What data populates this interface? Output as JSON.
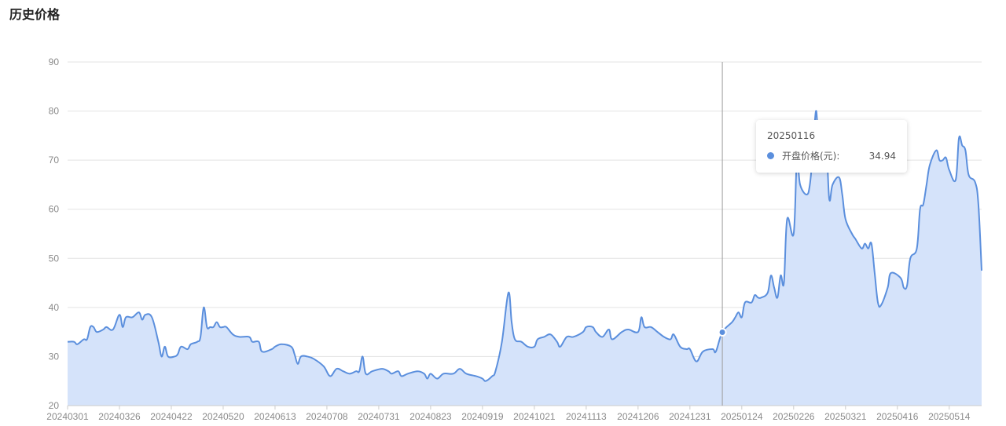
{
  "page": {
    "title": "历史价格"
  },
  "tooltip": {
    "date": "20250116",
    "series_label": "开盘价格(元):",
    "value": "34.94"
  },
  "colors": {
    "line": "#5b8fdd",
    "fill": "#d5e3fa",
    "grid": "#e3e3e3",
    "axis": "#cccccc",
    "crosshair": "#9a9a9a"
  },
  "chart_data": {
    "type": "area",
    "title": "",
    "xlabel": "",
    "ylabel": "",
    "ylim": [
      20,
      90
    ],
    "yticks": [
      20,
      30,
      40,
      50,
      60,
      70,
      80,
      90
    ],
    "grid": true,
    "x_ticks": [
      {
        "index": 0,
        "label": "20240301"
      },
      {
        "index": 16,
        "label": "20240326"
      },
      {
        "index": 32,
        "label": "20240422"
      },
      {
        "index": 48,
        "label": "20240520"
      },
      {
        "index": 64,
        "label": "20240613"
      },
      {
        "index": 80,
        "label": "20240708"
      },
      {
        "index": 96,
        "label": "20240731"
      },
      {
        "index": 112,
        "label": "20240823"
      },
      {
        "index": 128,
        "label": "20240919"
      },
      {
        "index": 144,
        "label": "20241021"
      },
      {
        "index": 160,
        "label": "20241113"
      },
      {
        "index": 176,
        "label": "20241206"
      },
      {
        "index": 192,
        "label": "20241231"
      },
      {
        "index": 208,
        "label": "20250124"
      },
      {
        "index": 224,
        "label": "20250226"
      },
      {
        "index": 240,
        "label": "20250321"
      },
      {
        "index": 256,
        "label": "20250416"
      },
      {
        "index": 272,
        "label": "20250514"
      }
    ],
    "x_max_index": 282,
    "highlight": {
      "index": 202,
      "date": "20250116",
      "value": 34.94
    },
    "series": [
      {
        "points": [
          [
            0,
            33
          ],
          [
            2,
            33
          ],
          [
            3,
            32.5
          ],
          [
            5,
            33.5
          ],
          [
            6,
            33.5
          ],
          [
            7,
            36
          ],
          [
            8,
            36
          ],
          [
            9,
            35
          ],
          [
            11,
            35.5
          ],
          [
            12,
            36
          ],
          [
            14,
            35.5
          ],
          [
            16,
            38.5
          ],
          [
            17,
            36
          ],
          [
            18,
            38
          ],
          [
            20,
            38
          ],
          [
            22,
            39
          ],
          [
            23,
            37.5
          ],
          [
            24,
            38.5
          ],
          [
            26,
            38
          ],
          [
            28,
            33
          ],
          [
            29,
            30
          ],
          [
            30,
            32
          ],
          [
            31,
            30
          ],
          [
            33,
            30
          ],
          [
            34,
            30.5
          ],
          [
            35,
            32
          ],
          [
            37,
            31.5
          ],
          [
            38,
            32.5
          ],
          [
            40,
            33
          ],
          [
            41,
            34
          ],
          [
            42,
            40
          ],
          [
            43,
            36
          ],
          [
            44,
            36
          ],
          [
            45,
            36
          ],
          [
            46,
            37
          ],
          [
            47,
            36
          ],
          [
            48,
            36
          ],
          [
            49,
            36
          ],
          [
            51,
            34.5
          ],
          [
            53,
            34
          ],
          [
            56,
            34
          ],
          [
            57,
            33
          ],
          [
            59,
            33
          ],
          [
            60,
            31
          ],
          [
            63,
            31.5
          ],
          [
            64,
            32
          ],
          [
            66,
            32.5
          ],
          [
            69,
            32
          ],
          [
            70,
            30.5
          ],
          [
            71,
            28.5
          ],
          [
            72,
            30
          ],
          [
            74,
            30
          ],
          [
            76,
            29.5
          ],
          [
            79,
            28
          ],
          [
            81,
            26
          ],
          [
            83,
            27.5
          ],
          [
            85,
            27
          ],
          [
            87,
            26.5
          ],
          [
            89,
            27
          ],
          [
            90,
            27
          ],
          [
            91,
            30
          ],
          [
            92,
            26.5
          ],
          [
            94,
            27
          ],
          [
            97,
            27.5
          ],
          [
            99,
            27
          ],
          [
            100,
            26.5
          ],
          [
            102,
            27
          ],
          [
            103,
            26
          ],
          [
            105,
            26.5
          ],
          [
            108,
            27
          ],
          [
            110,
            26.5
          ],
          [
            111,
            25.5
          ],
          [
            112,
            26.5
          ],
          [
            114,
            25.5
          ],
          [
            116,
            26.5
          ],
          [
            119,
            26.5
          ],
          [
            121,
            27.5
          ],
          [
            123,
            26.5
          ],
          [
            126,
            26
          ],
          [
            128,
            25.5
          ],
          [
            129,
            25
          ],
          [
            131,
            26
          ],
          [
            132,
            27
          ],
          [
            134,
            33
          ],
          [
            136,
            43
          ],
          [
            137,
            37
          ],
          [
            138,
            33.5
          ],
          [
            140,
            33
          ],
          [
            142,
            32
          ],
          [
            144,
            32
          ],
          [
            145,
            33.5
          ],
          [
            147,
            34
          ],
          [
            149,
            34.5
          ],
          [
            151,
            33
          ],
          [
            152,
            32
          ],
          [
            154,
            34
          ],
          [
            156,
            34
          ],
          [
            159,
            35
          ],
          [
            160,
            36
          ],
          [
            162,
            36
          ],
          [
            163,
            35
          ],
          [
            165,
            34
          ],
          [
            167,
            35.5
          ],
          [
            168,
            33.5
          ],
          [
            171,
            35
          ],
          [
            173,
            35.5
          ],
          [
            176,
            35
          ],
          [
            177,
            38
          ],
          [
            178,
            36
          ],
          [
            180,
            36
          ],
          [
            182,
            35
          ],
          [
            184,
            34
          ],
          [
            186,
            33.5
          ],
          [
            187,
            34.5
          ],
          [
            189,
            32
          ],
          [
            191,
            31.5
          ],
          [
            192,
            31.5
          ],
          [
            194,
            29
          ],
          [
            196,
            31
          ],
          [
            199,
            31.5
          ],
          [
            200,
            31
          ],
          [
            202,
            34.94
          ],
          [
            205,
            37
          ],
          [
            206,
            38
          ],
          [
            207,
            39
          ],
          [
            208,
            38
          ],
          [
            209,
            41
          ],
          [
            211,
            41
          ],
          [
            212,
            42.5
          ],
          [
            213,
            42
          ],
          [
            214,
            42
          ],
          [
            216,
            43
          ],
          [
            217,
            46.5
          ],
          [
            218,
            44
          ],
          [
            219,
            42
          ],
          [
            220,
            46.5
          ],
          [
            221,
            45
          ],
          [
            222,
            58
          ],
          [
            224,
            55
          ],
          [
            225,
            70
          ],
          [
            226,
            65
          ],
          [
            228,
            63
          ],
          [
            229,
            65
          ],
          [
            230,
            72
          ],
          [
            231,
            80
          ],
          [
            232,
            68
          ],
          [
            234,
            72
          ],
          [
            235,
            62
          ],
          [
            236,
            65
          ],
          [
            238,
            66.5
          ],
          [
            239,
            63
          ],
          [
            240,
            58
          ],
          [
            242,
            55
          ],
          [
            243,
            54
          ],
          [
            245,
            52
          ],
          [
            246,
            53
          ],
          [
            247,
            52
          ],
          [
            248,
            53
          ],
          [
            249,
            47
          ],
          [
            250,
            41
          ],
          [
            251,
            40.5
          ],
          [
            253,
            44
          ],
          [
            254,
            47
          ],
          [
            257,
            46
          ],
          [
            258,
            44
          ],
          [
            259,
            44.5
          ],
          [
            260,
            50
          ],
          [
            262,
            52
          ],
          [
            263,
            60
          ],
          [
            264,
            61
          ],
          [
            265,
            65
          ],
          [
            266,
            69
          ],
          [
            268,
            72
          ],
          [
            269,
            70
          ],
          [
            270,
            70
          ],
          [
            271,
            70.5
          ],
          [
            272,
            68
          ],
          [
            274,
            66
          ],
          [
            275,
            74.5
          ],
          [
            276,
            73
          ],
          [
            277,
            72
          ],
          [
            278,
            67
          ],
          [
            280,
            65.5
          ],
          [
            281,
            61
          ],
          [
            282,
            47.5
          ]
        ]
      }
    ]
  }
}
